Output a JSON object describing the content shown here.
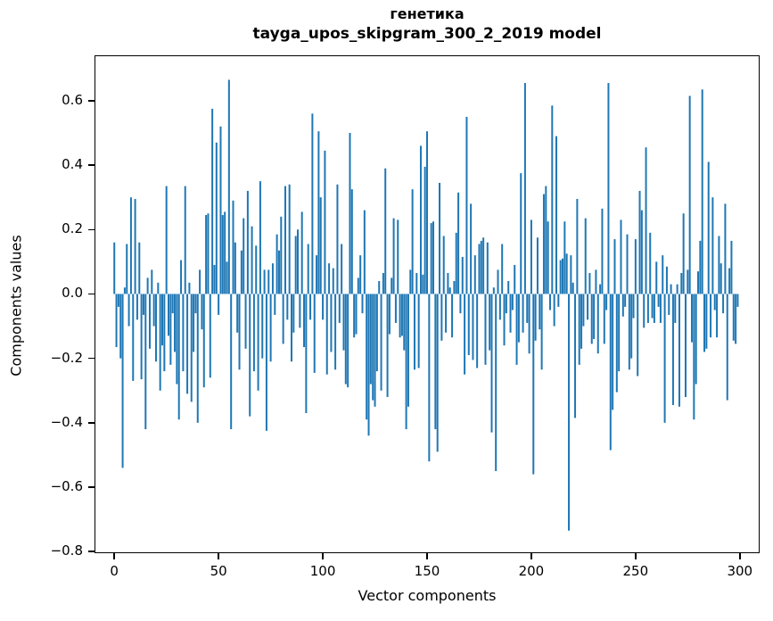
{
  "figure": {
    "background": "#ffffff",
    "title_line1": "генетика",
    "title_line2": "tayga_upos_skipgram_300_2_2019 model"
  },
  "chart_data": {
    "type": "bar",
    "title": "генетика",
    "subtitle": "tayga_upos_skipgram_300_2_2019 model",
    "xlabel": "Vector components",
    "ylabel": "Components values",
    "bar_color": "#1f77b4",
    "axis_color": "#000000",
    "grid": false,
    "legend": null,
    "n_points": 300,
    "x_start": 0,
    "xlim": [
      -9.5,
      309.5
    ],
    "ylim": [
      -0.805,
      0.741
    ],
    "xticks": [
      0,
      50,
      100,
      150,
      200,
      250,
      300
    ],
    "xtick_labels": [
      "0",
      "50",
      "100",
      "150",
      "200",
      "250",
      "300"
    ],
    "yticks": [
      0.6,
      0.4,
      0.2,
      0.0,
      -0.2,
      -0.4,
      -0.6,
      -0.8
    ],
    "ytick_labels": [
      "0.6",
      "0.4",
      "0.2",
      "0.0",
      "−0.2",
      "−0.4",
      "−0.6",
      "−0.8"
    ],
    "values": [
      0.16,
      -0.165,
      -0.04,
      -0.2,
      -0.54,
      0.02,
      0.155,
      -0.1,
      0.3,
      -0.27,
      0.295,
      -0.08,
      0.16,
      -0.265,
      -0.065,
      -0.42,
      0.05,
      -0.17,
      0.075,
      -0.1,
      -0.21,
      0.035,
      -0.3,
      -0.16,
      -0.24,
      0.335,
      -0.13,
      -0.22,
      -0.06,
      -0.18,
      -0.28,
      -0.39,
      0.105,
      -0.24,
      0.335,
      -0.31,
      0.035,
      -0.335,
      -0.18,
      -0.06,
      -0.4,
      0.075,
      -0.11,
      -0.29,
      0.245,
      0.25,
      -0.26,
      0.575,
      0.09,
      0.47,
      -0.065,
      0.52,
      0.245,
      0.255,
      0.1,
      0.665,
      -0.42,
      0.29,
      0.16,
      -0.12,
      -0.235,
      0.135,
      0.235,
      -0.17,
      0.32,
      -0.38,
      0.21,
      -0.24,
      0.15,
      -0.3,
      0.35,
      -0.2,
      0.075,
      -0.425,
      0.075,
      -0.21,
      0.095,
      -0.065,
      0.185,
      0.135,
      0.24,
      -0.155,
      0.335,
      -0.08,
      0.34,
      -0.21,
      -0.12,
      0.18,
      0.2,
      -0.105,
      0.255,
      -0.165,
      -0.37,
      0.155,
      -0.08,
      0.56,
      -0.245,
      0.12,
      0.505,
      0.3,
      -0.08,
      0.445,
      -0.25,
      0.095,
      -0.18,
      0.08,
      -0.235,
      0.34,
      -0.09,
      0.155,
      -0.175,
      -0.28,
      -0.29,
      0.5,
      0.325,
      -0.135,
      -0.125,
      0.05,
      0.12,
      -0.06,
      0.26,
      -0.39,
      -0.44,
      -0.28,
      -0.33,
      -0.35,
      -0.24,
      0.04,
      -0.3,
      0.065,
      0.39,
      -0.32,
      -0.125,
      0.05,
      0.235,
      -0.09,
      0.23,
      -0.135,
      -0.13,
      -0.175,
      -0.42,
      -0.35,
      0.075,
      0.325,
      -0.235,
      0.065,
      -0.23,
      0.46,
      0.06,
      0.395,
      0.505,
      -0.52,
      0.22,
      0.225,
      -0.42,
      -0.49,
      0.345,
      -0.145,
      0.18,
      -0.12,
      0.065,
      0.02,
      -0.135,
      0.04,
      0.19,
      0.315,
      -0.06,
      0.115,
      -0.25,
      0.55,
      -0.19,
      0.28,
      -0.205,
      0.12,
      -0.23,
      0.155,
      0.165,
      0.175,
      -0.22,
      0.16,
      -0.175,
      -0.43,
      0.02,
      -0.55,
      0.075,
      -0.08,
      0.155,
      -0.16,
      -0.06,
      0.04,
      -0.12,
      -0.05,
      0.09,
      -0.22,
      -0.15,
      0.375,
      -0.12,
      0.655,
      -0.09,
      -0.185,
      0.23,
      -0.56,
      -0.145,
      0.175,
      -0.11,
      -0.235,
      0.31,
      0.335,
      0.225,
      -0.05,
      0.585,
      -0.1,
      0.49,
      -0.04,
      0.105,
      0.11,
      0.225,
      0.125,
      -0.735,
      0.12,
      0.035,
      -0.385,
      0.295,
      -0.22,
      -0.17,
      -0.1,
      0.235,
      -0.08,
      0.065,
      -0.155,
      -0.14,
      0.075,
      -0.185,
      0.03,
      0.265,
      -0.155,
      -0.05,
      0.655,
      -0.485,
      -0.36,
      0.17,
      -0.305,
      -0.24,
      0.23,
      -0.07,
      -0.04,
      0.185,
      -0.235,
      -0.2,
      -0.075,
      0.17,
      -0.255,
      0.32,
      0.26,
      -0.105,
      0.455,
      -0.09,
      0.19,
      -0.075,
      -0.09,
      0.1,
      -0.04,
      -0.09,
      0.12,
      -0.4,
      0.085,
      -0.065,
      0.03,
      -0.345,
      -0.09,
      0.03,
      -0.35,
      0.065,
      0.25,
      -0.32,
      0.075,
      0.615,
      -0.15,
      -0.39,
      -0.28,
      0.07,
      0.165,
      0.635,
      -0.18,
      -0.17,
      0.41,
      -0.135,
      0.3,
      -0.05,
      -0.135,
      0.18,
      0.095,
      -0.06,
      0.28,
      -0.33,
      0.08,
      0.165,
      -0.145,
      -0.155,
      -0.04
    ]
  }
}
